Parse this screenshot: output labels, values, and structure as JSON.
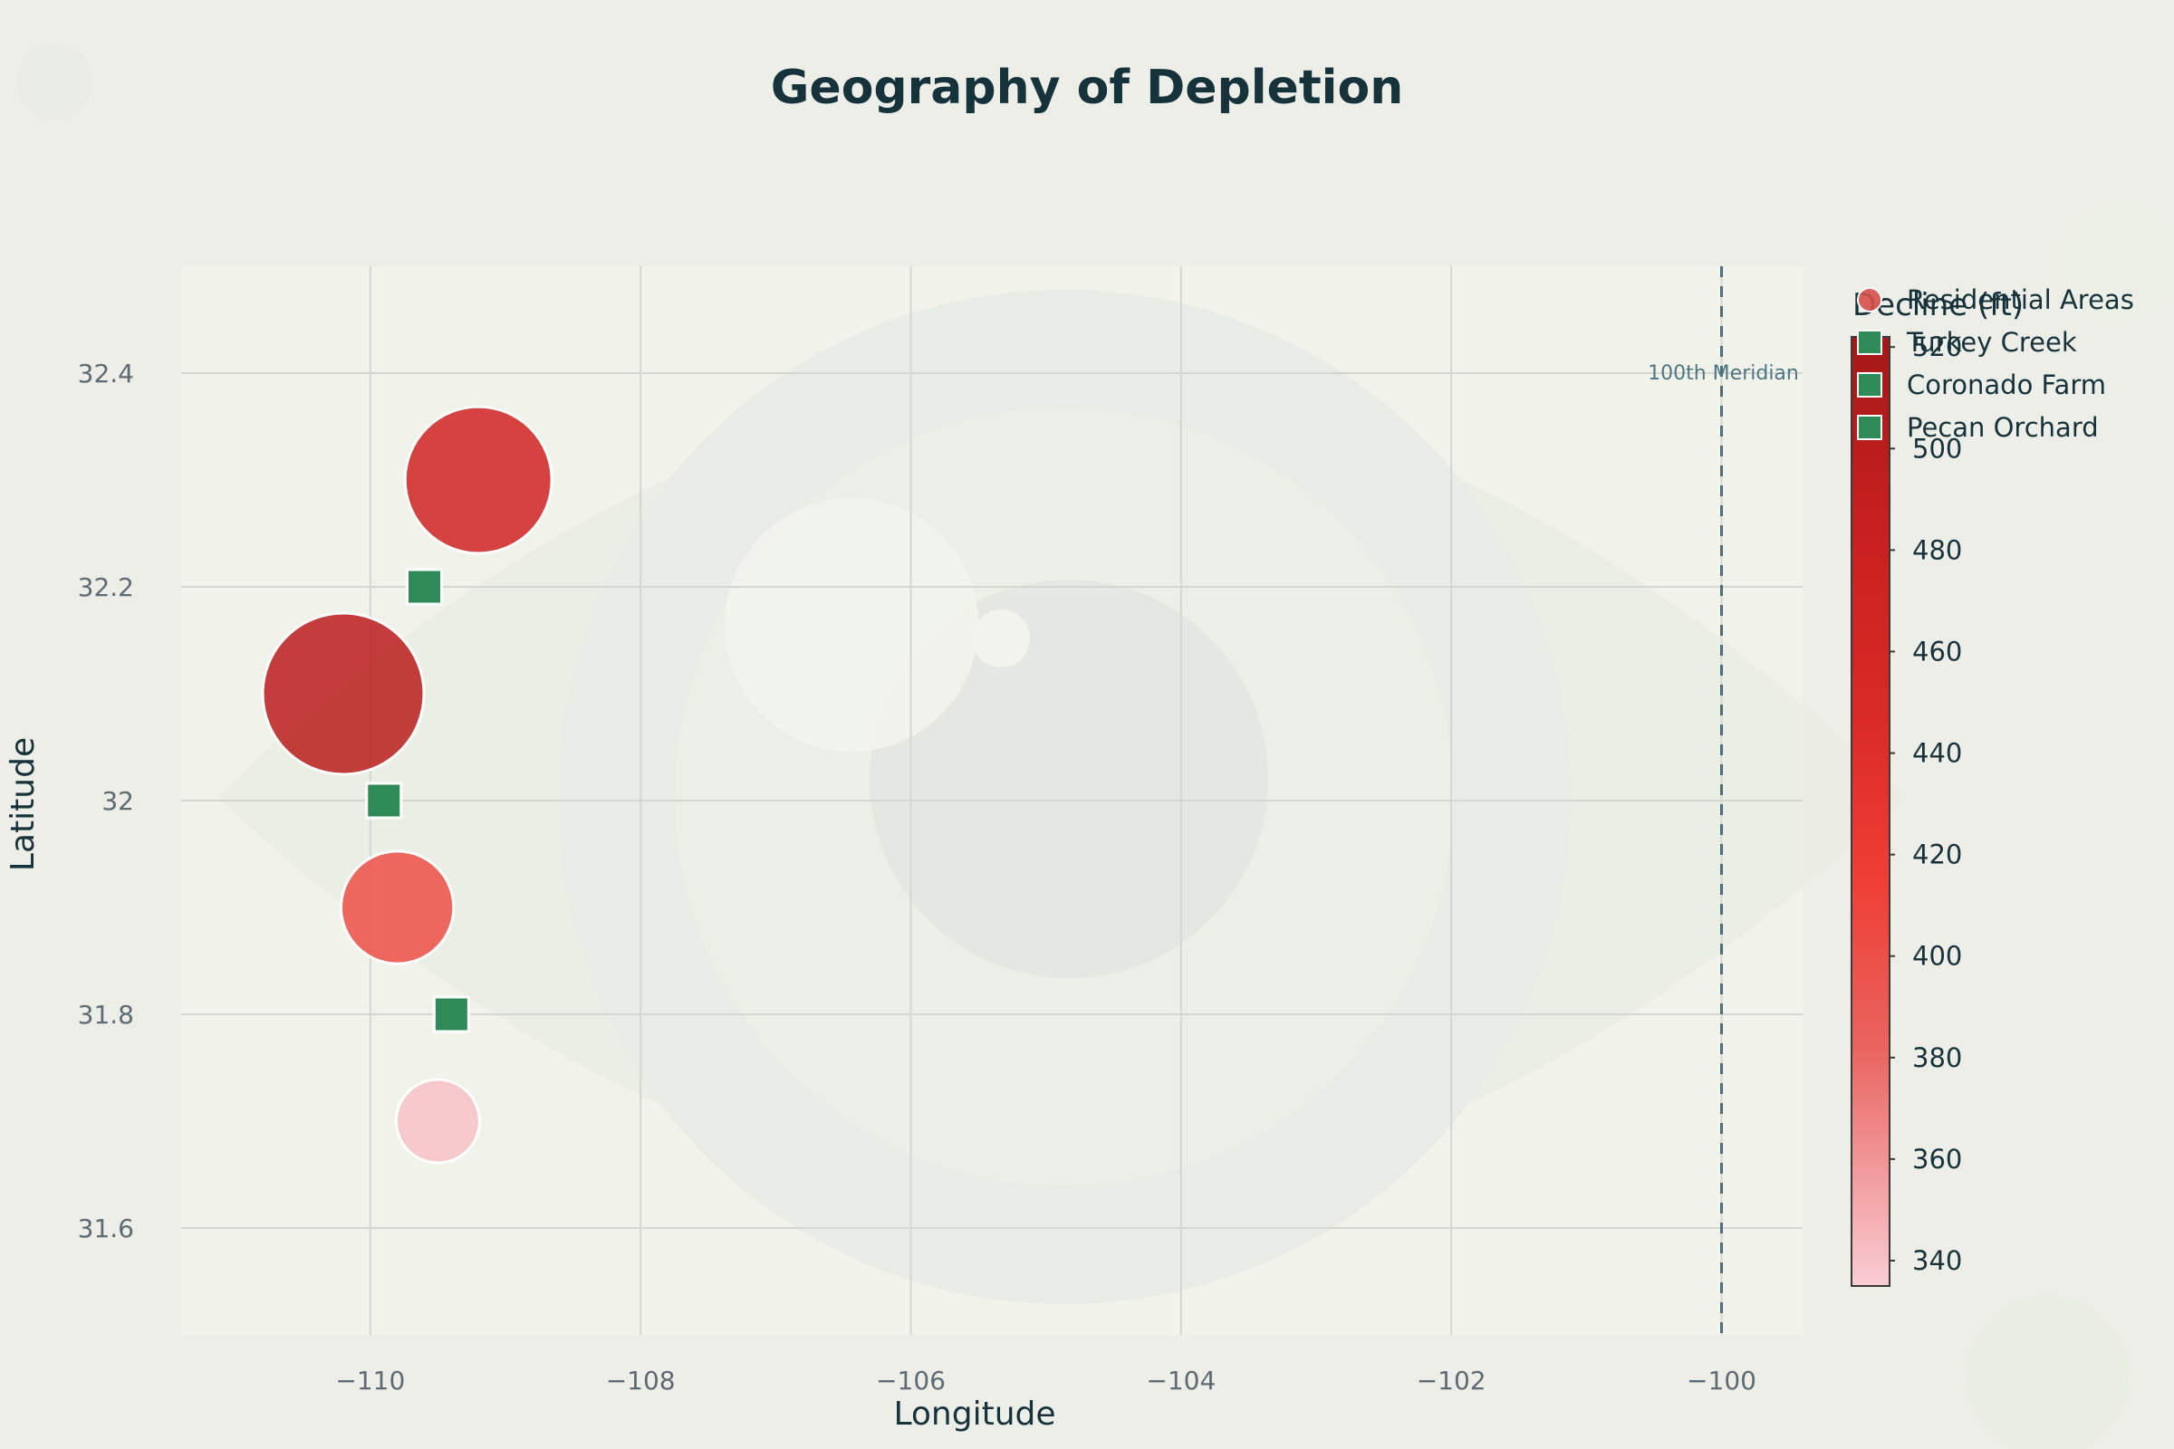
{
  "chart_data": {
    "type": "scatter",
    "title": "Geography of Depletion",
    "xlabel": "Longitude",
    "ylabel": "Latitude",
    "xlim": [
      -111.4,
      -99.4
    ],
    "ylim": [
      31.5,
      32.5
    ],
    "xticks": [
      -110,
      -108,
      -106,
      -104,
      -102,
      -100
    ],
    "xtick_labels": [
      "−110",
      "−108",
      "−106",
      "−104",
      "−102",
      "−100"
    ],
    "yticks": [
      31.6,
      31.8,
      32,
      32.2,
      32.4
    ],
    "ytick_labels": [
      "31.6",
      "31.8",
      "32",
      "32.2",
      "32.4"
    ],
    "grid": true,
    "reference_line": {
      "x": -100,
      "label": "100th Meridian",
      "style": "dashed"
    },
    "series": [
      {
        "name": "Residential Areas",
        "marker": "circle",
        "points": [
          {
            "x": -109.2,
            "y": 32.3,
            "decline": 470
          },
          {
            "x": -110.2,
            "y": 32.1,
            "decline": 500
          },
          {
            "x": -109.8,
            "y": 31.9,
            "decline": 400
          },
          {
            "x": -109.5,
            "y": 31.7,
            "decline": 340
          }
        ]
      },
      {
        "name": "Turkey Creek",
        "marker": "square",
        "color": "#2e8b57",
        "points": [
          {
            "x": -109.6,
            "y": 32.2
          }
        ]
      },
      {
        "name": "Coronado Farm",
        "marker": "square",
        "color": "#2e8b57",
        "points": [
          {
            "x": -109.9,
            "y": 32.0
          }
        ]
      },
      {
        "name": "Pecan Orchard",
        "marker": "square",
        "color": "#2e8b57",
        "points": [
          {
            "x": -109.4,
            "y": 31.8
          }
        ]
      }
    ],
    "legend": [
      "Residential Areas",
      "Turkey Creek",
      "Coronado Farm",
      "Pecan Orchard"
    ],
    "legend_position": "top-right",
    "colorbar": {
      "title": "Decline (ft)",
      "range": [
        335,
        522
      ],
      "ticks": [
        340,
        360,
        380,
        400,
        420,
        440,
        460,
        480,
        500,
        520
      ],
      "colorscale": [
        "#f9cdd4",
        "#e9645f",
        "#ef4036",
        "#d92a26",
        "#c8201f",
        "#a51818"
      ]
    }
  }
}
